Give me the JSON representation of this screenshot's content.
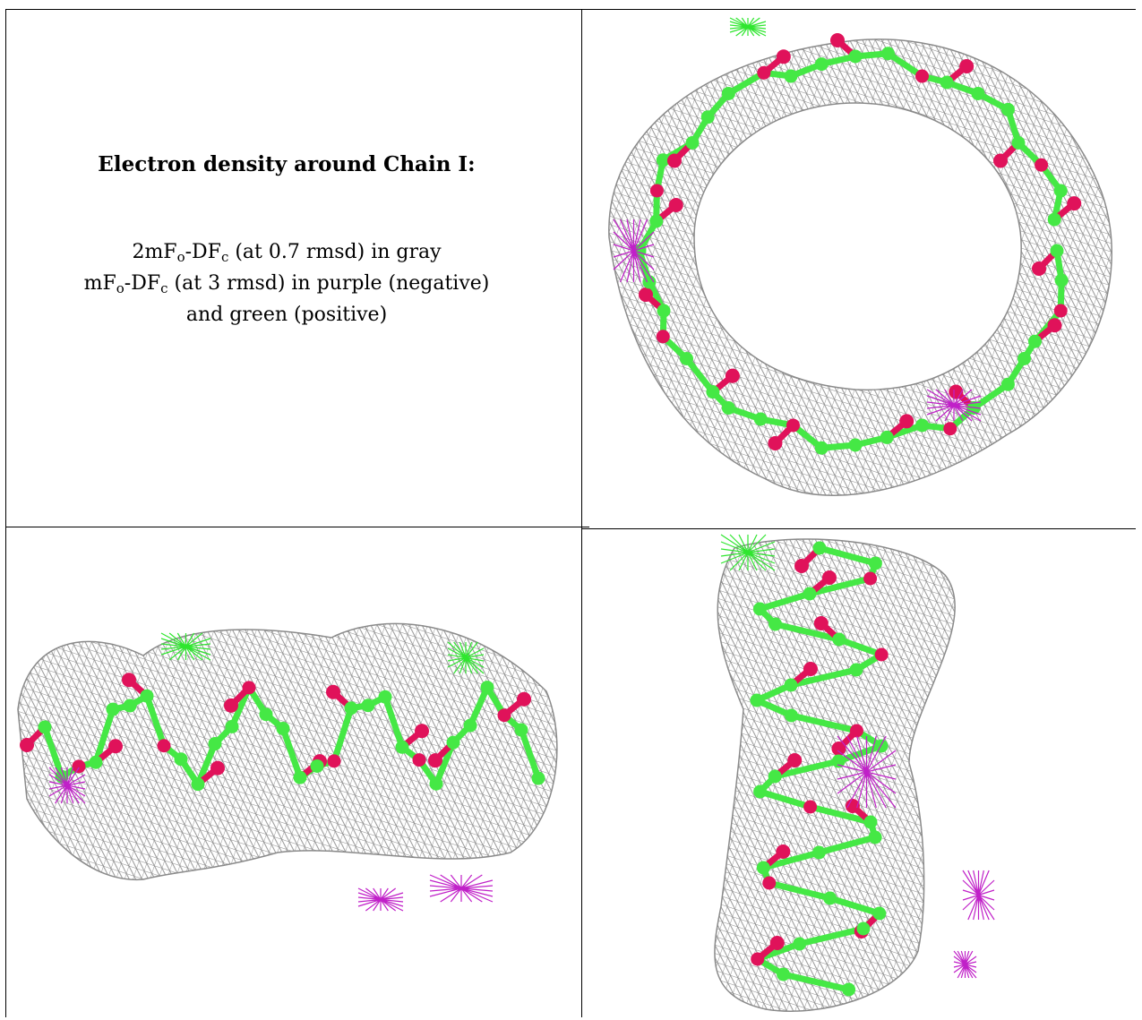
{
  "caption": {
    "title": "Electron density around Chain I:",
    "line1": {
      "pre": "2mF",
      "s1": "o",
      "mid": "-DF",
      "s2": "c",
      "post": " (at 0.7 rmsd) in gray"
    },
    "line2": {
      "pre": "mF",
      "s1": "o",
      "mid": "-DF",
      "s2": "c",
      "post": " (at 3 rmsd) in purple (negative)"
    },
    "line3": "and green (positive)"
  },
  "colors": {
    "mesh_2fofc": "#8a8a8a",
    "diff_negative": "#c020c8",
    "diff_positive": "#2fe62f",
    "carbon": "#45e845",
    "oxygen": "#e0125a"
  }
}
